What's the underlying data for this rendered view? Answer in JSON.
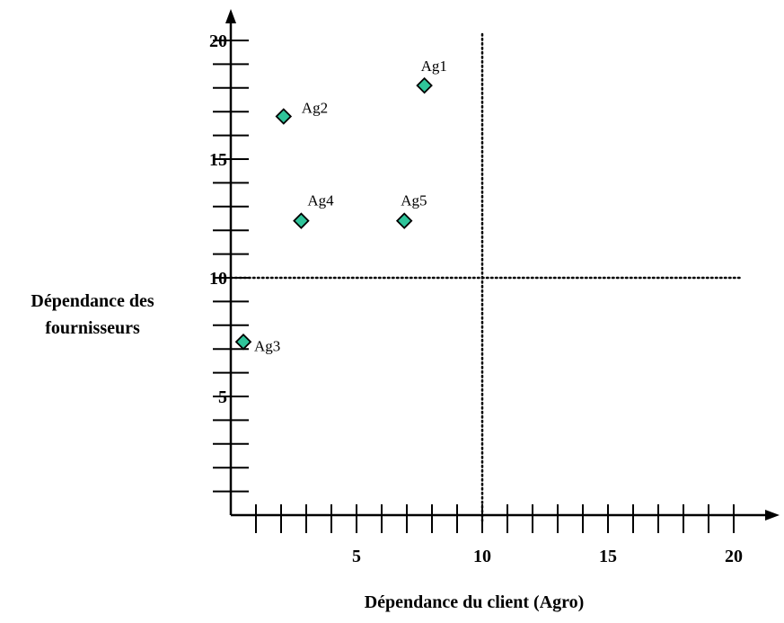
{
  "chart_data": {
    "type": "scatter",
    "title": "",
    "xlabel": "Dépendance du client (Agro)",
    "ylabel_lines": [
      "Dépendance des",
      "fournisseurs"
    ],
    "xlim": [
      0,
      21
    ],
    "ylim": [
      0,
      20
    ],
    "x_ticks": [
      5,
      10,
      15,
      20
    ],
    "y_ticks": [
      5,
      10,
      15,
      20
    ],
    "x_minor_step": 1,
    "y_minor_step": 1,
    "reference_lines": {
      "x": 10,
      "y": 10
    },
    "points": [
      {
        "label": "Ag1",
        "x": 7.7,
        "y": 18.1
      },
      {
        "label": "Ag2",
        "x": 2.1,
        "y": 16.8
      },
      {
        "label": "Ag3",
        "x": 0.5,
        "y": 7.3
      },
      {
        "label": "Ag4",
        "x": 2.8,
        "y": 12.4
      },
      {
        "label": "Ag5",
        "x": 6.9,
        "y": 12.4
      }
    ],
    "marker": {
      "shape": "diamond",
      "fill": "#2fc49a",
      "stroke": "#000000"
    },
    "grid": false,
    "legend": "none"
  }
}
